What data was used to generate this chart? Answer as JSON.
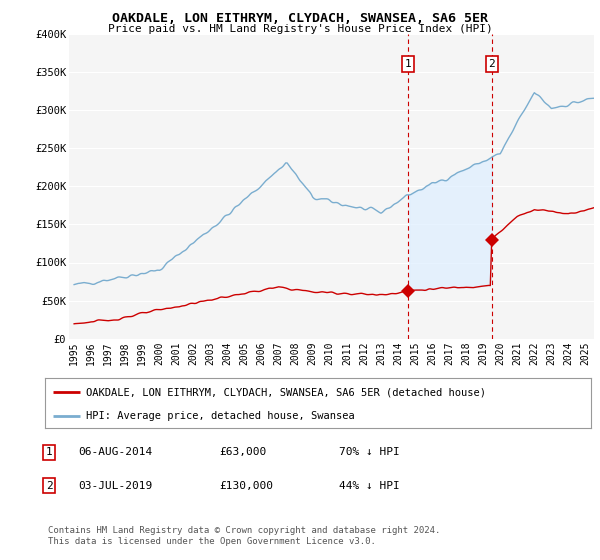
{
  "title": "OAKDALE, LON EITHRYM, CLYDACH, SWANSEA, SA6 5ER",
  "subtitle": "Price paid vs. HM Land Registry's House Price Index (HPI)",
  "legend_label_red": "OAKDALE, LON EITHRYM, CLYDACH, SWANSEA, SA6 5ER (detached house)",
  "legend_label_blue": "HPI: Average price, detached house, Swansea",
  "footer": "Contains HM Land Registry data © Crown copyright and database right 2024.\nThis data is licensed under the Open Government Licence v3.0.",
  "point1_label": "1",
  "point1_date": "06-AUG-2014",
  "point1_price": "£63,000",
  "point1_hpi": "70% ↓ HPI",
  "point1_x": 2014.6,
  "point1_y": 63000,
  "point2_label": "2",
  "point2_date": "03-JUL-2019",
  "point2_price": "£130,000",
  "point2_hpi": "44% ↓ HPI",
  "point2_x": 2019.5,
  "point2_y": 130000,
  "ylim": [
    0,
    400000
  ],
  "xlim": [
    1994.7,
    2025.5
  ],
  "background_color": "#ffffff",
  "plot_bg_color": "#f5f5f5",
  "grid_color": "#ffffff",
  "red_color": "#cc0000",
  "blue_color": "#7aadcf",
  "shade_color": "#ddeeff",
  "dashed_color": "#cc0000"
}
